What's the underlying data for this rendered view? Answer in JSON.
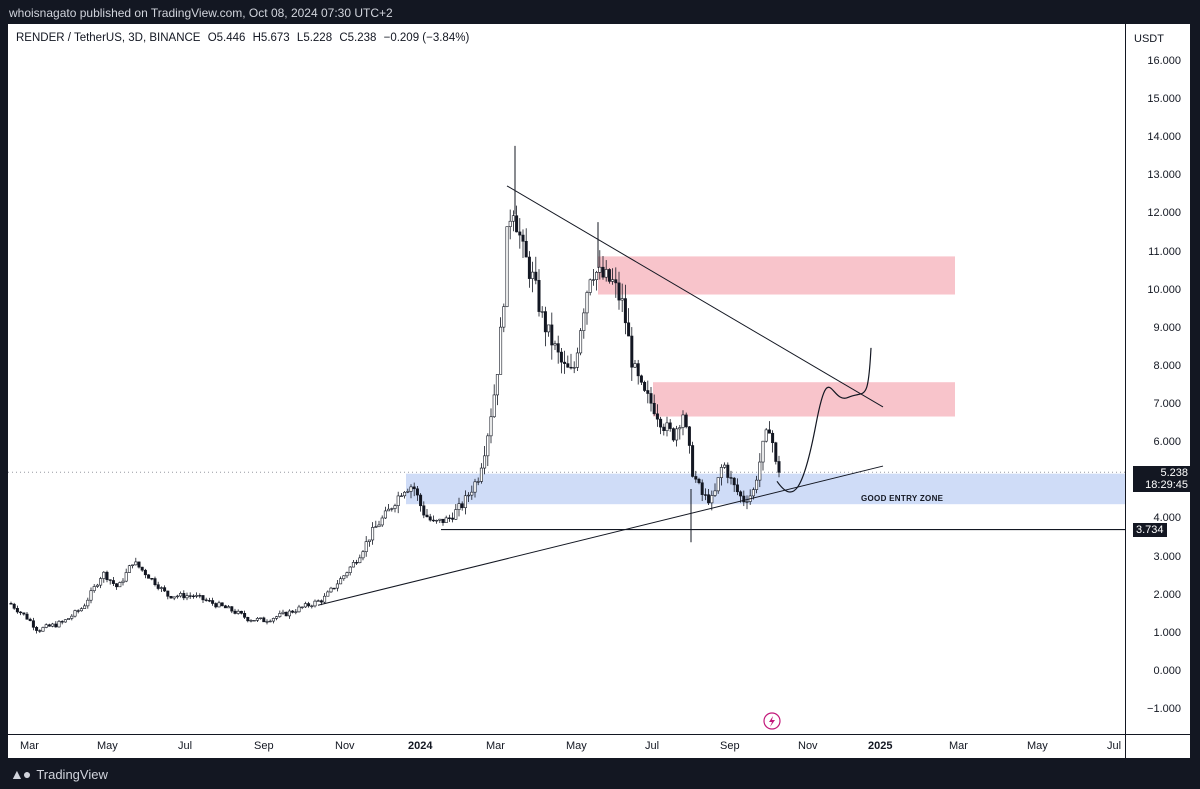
{
  "header": {
    "caption": "whoisnagato published on TradingView.com, Oct 08, 2024 07:30 UTC+2"
  },
  "symbol": {
    "name": "RENDER / TetherUS, 3D, BINANCE",
    "open": "O5.446",
    "high": "H5.673",
    "low": "L5.228",
    "close": "C5.238",
    "change": "−0.209 (−3.84%)"
  },
  "price_axis": {
    "currency": "USDT",
    "ticks": [
      "16.000",
      "15.000",
      "14.000",
      "13.000",
      "12.000",
      "11.000",
      "10.000",
      "9.000",
      "8.000",
      "7.000",
      "6.000",
      "5.000",
      "4.000",
      "3.000",
      "2.000",
      "1.000",
      "0.000",
      "−1.000"
    ],
    "last_price": "5.238",
    "countdown": "18:29:45",
    "level_label": "3.734"
  },
  "time_axis": {
    "labels": [
      "Mar",
      "May",
      "Jul",
      "Sep",
      "Nov",
      "2024",
      "Mar",
      "May",
      "Jul",
      "Sep",
      "Nov",
      "2025",
      "Mar",
      "May",
      "Jul"
    ]
  },
  "annotations": {
    "zone_label": "GOOD ENTRY ZONE"
  },
  "footer": {
    "brand": "TradingView"
  },
  "colors": {
    "candle": "#131722",
    "supply_zone": "#f8c4cb",
    "entry_zone": "#cfdcf7",
    "trendline": "#131722",
    "background": "#ffffff",
    "frame": "#131722"
  },
  "chart_data": {
    "type": "candlestick",
    "title": "RENDER / TetherUS, 3D, BINANCE",
    "ylabel": "USDT",
    "ylim": [
      -1.5,
      16.5
    ],
    "y_ticks": [
      -1,
      0,
      1,
      2,
      3,
      4,
      5,
      6,
      7,
      8,
      9,
      10,
      11,
      12,
      13,
      14,
      15,
      16
    ],
    "x_labels": [
      "Mar",
      "May",
      "Jul",
      "Sep",
      "Nov",
      "2024",
      "Mar",
      "May",
      "Jul",
      "Sep",
      "Nov",
      "2025",
      "Mar",
      "May",
      "Jul"
    ],
    "close_path": [
      [
        "Mar 2023",
        1.8
      ],
      [
        "Apr 2023",
        1.2
      ],
      [
        "May 2023",
        2.4
      ],
      [
        "Jun 2023",
        2.6
      ],
      [
        "Jul 2023",
        2.0
      ],
      [
        "Aug 2023",
        1.8
      ],
      [
        "Sep 2023",
        1.4
      ],
      [
        "Oct 2023",
        1.6
      ],
      [
        "Nov 2023",
        2.4
      ],
      [
        "Dec 2023",
        4.2
      ],
      [
        "Jan 2024",
        4.5
      ],
      [
        "Feb 2024",
        7.5
      ],
      [
        "Mar 2024",
        12.0
      ],
      [
        "Apr 2024",
        8.5
      ],
      [
        "May 2024",
        10.5
      ],
      [
        "Jun 2024",
        8.0
      ],
      [
        "Jul 2024",
        6.0
      ],
      [
        "Aug 2024",
        4.6
      ],
      [
        "Sep 2024",
        5.6
      ],
      [
        "Oct 2024",
        5.238
      ]
    ],
    "last_price": 5.238,
    "horizontal_level": 3.734,
    "zones": [
      {
        "name": "supply-upper",
        "from": 9.9,
        "to": 10.9
      },
      {
        "name": "supply-lower",
        "from": 6.7,
        "to": 7.6
      },
      {
        "name": "GOOD ENTRY ZONE",
        "from": 4.4,
        "to": 5.2
      }
    ],
    "grid": false,
    "legend": "none"
  }
}
